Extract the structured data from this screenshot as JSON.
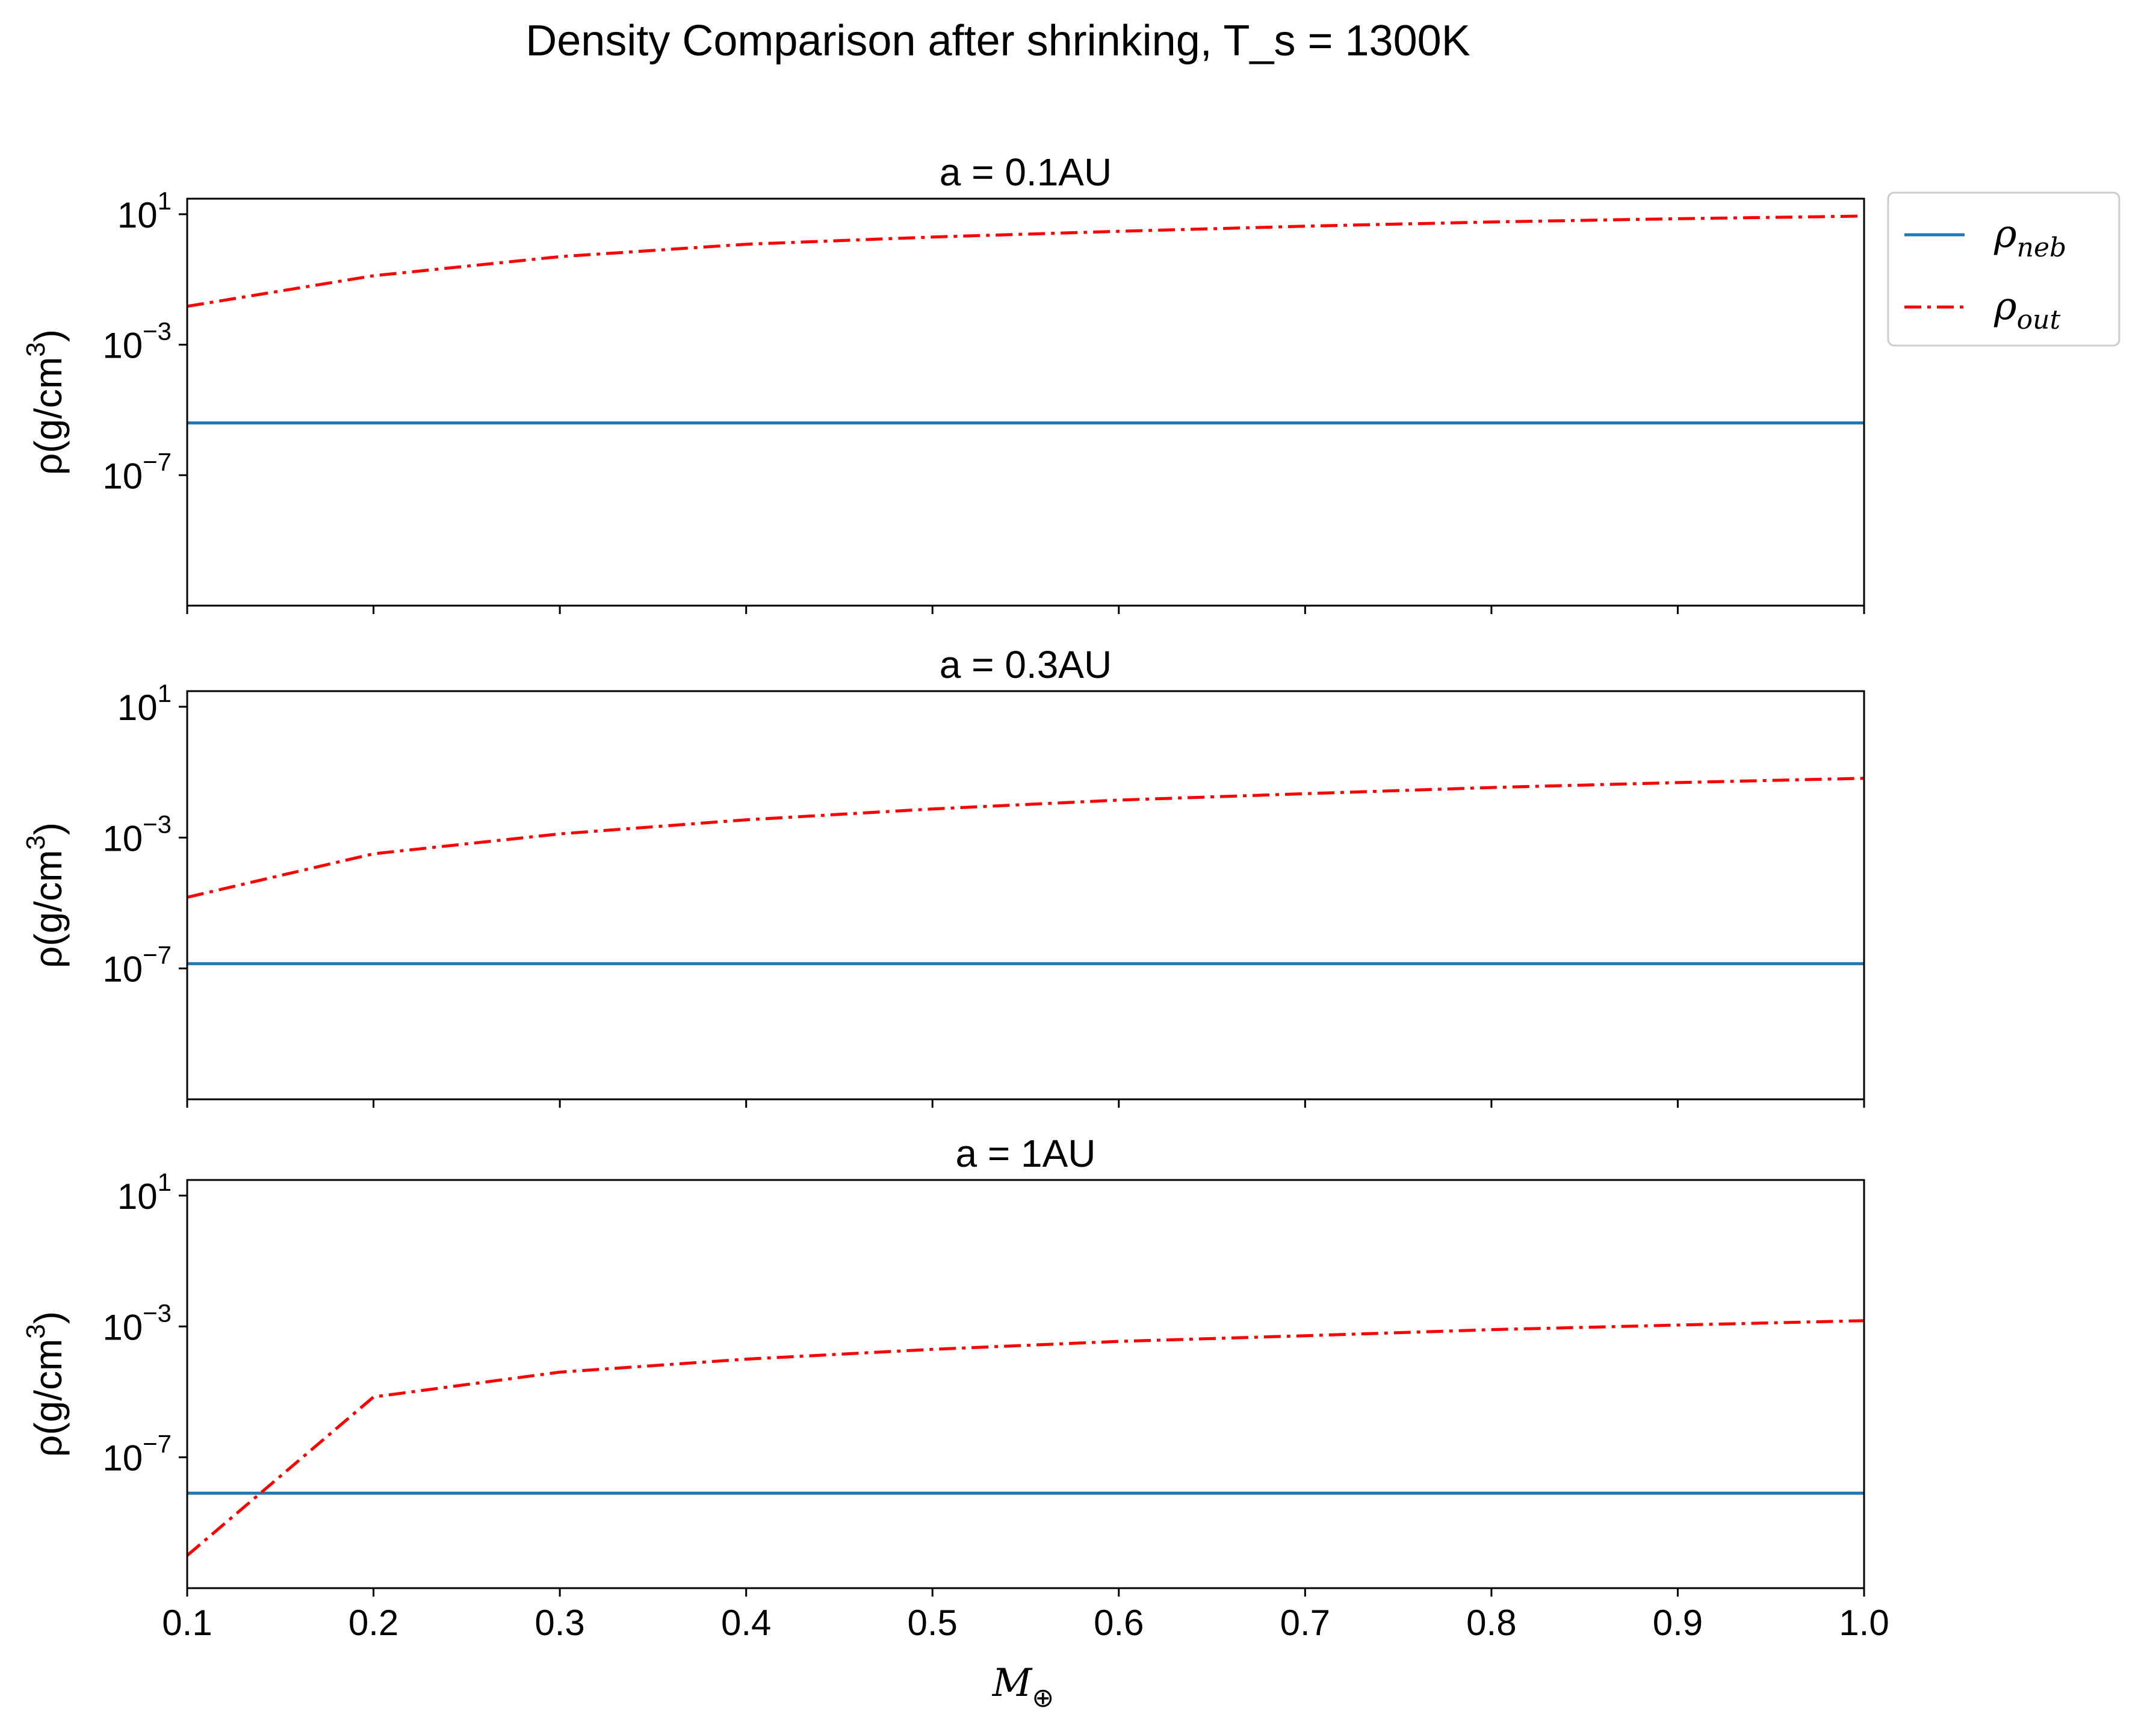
{
  "figure": {
    "title": "Density Comparison after shrinking, T_s = 1300K",
    "xlabel": "M",
    "xlabel_sub": "⊕",
    "ylabel_prefix": "ρ(g/cm",
    "ylabel_sup": "3",
    "ylabel_suffix": ")"
  },
  "legend": {
    "placement": "outside upper right",
    "entries": [
      {
        "symbol": "ρ",
        "sub": "neb",
        "color": "#1f77b4",
        "linestyle": "solid"
      },
      {
        "symbol": "ρ",
        "sub": "out",
        "color": "#ff0000",
        "linestyle": "dashdot"
      }
    ]
  },
  "chart_data": [
    {
      "type": "line",
      "title": "a = 0.1AU",
      "xlabel": "",
      "ylabel": "ρ(g/cm3)",
      "yscale": "log",
      "xlim": [
        0.1,
        1.0
      ],
      "ylim": [
        1e-11,
        30
      ],
      "x_ticks": [
        0.1,
        0.2,
        0.3,
        0.4,
        0.5,
        0.6,
        0.7,
        0.8,
        0.9,
        1.0
      ],
      "x_tick_labels_shown": false,
      "y_ticks": [
        {
          "base": "10",
          "exp": "−7",
          "value": 1e-07
        },
        {
          "base": "10",
          "exp": "−3",
          "value": 0.001
        },
        {
          "base": "10",
          "exp": "1",
          "value": 10
        }
      ],
      "grid": false,
      "x": [
        0.1,
        0.2,
        0.3,
        0.4,
        0.5,
        0.6,
        0.7,
        0.8,
        0.9,
        1.0
      ],
      "series": [
        {
          "name": "ρneb",
          "color": "#1f77b4",
          "style": "solid",
          "values": [
            4e-06,
            4e-06,
            4e-06,
            4e-06,
            4e-06,
            4e-06,
            4e-06,
            4e-06,
            4e-06,
            4e-06
          ]
        },
        {
          "name": "ρout",
          "color": "#ff0000",
          "style": "dashdot",
          "values": [
            0.015,
            0.13,
            0.5,
            1.2,
            2.0,
            3.0,
            4.3,
            5.8,
            7.3,
            8.8
          ]
        }
      ]
    },
    {
      "type": "line",
      "title": "a = 0.3AU",
      "xlabel": "",
      "ylabel": "ρ(g/cm3)",
      "yscale": "log",
      "xlim": [
        0.1,
        1.0
      ],
      "ylim": [
        1e-11,
        30
      ],
      "x_ticks": [
        0.1,
        0.2,
        0.3,
        0.4,
        0.5,
        0.6,
        0.7,
        0.8,
        0.9,
        1.0
      ],
      "x_tick_labels_shown": false,
      "y_ticks": [
        {
          "base": "10",
          "exp": "−7",
          "value": 1e-07
        },
        {
          "base": "10",
          "exp": "−3",
          "value": 0.001
        },
        {
          "base": "10",
          "exp": "1",
          "value": 10
        }
      ],
      "grid": false,
      "x": [
        0.1,
        0.2,
        0.3,
        0.4,
        0.5,
        0.6,
        0.7,
        0.8,
        0.9,
        1.0
      ],
      "series": [
        {
          "name": "ρneb",
          "color": "#1f77b4",
          "style": "solid",
          "values": [
            1.4e-07,
            1.4e-07,
            1.4e-07,
            1.4e-07,
            1.4e-07,
            1.4e-07,
            1.4e-07,
            1.4e-07,
            1.4e-07,
            1.4e-07
          ]
        },
        {
          "name": "ρout",
          "color": "#ff0000",
          "style": "dashdot",
          "values": [
            1.5e-05,
            0.00032,
            0.0013,
            0.0035,
            0.0075,
            0.014,
            0.022,
            0.034,
            0.048,
            0.065
          ]
        }
      ]
    },
    {
      "type": "line",
      "title": "a = 1AU",
      "xlabel": "M⊕",
      "ylabel": "ρ(g/cm3)",
      "yscale": "log",
      "xlim": [
        0.1,
        1.0
      ],
      "ylim": [
        1e-11,
        30
      ],
      "x_ticks": [
        0.1,
        0.2,
        0.3,
        0.4,
        0.5,
        0.6,
        0.7,
        0.8,
        0.9,
        1.0
      ],
      "x_tick_labels_shown": true,
      "y_ticks": [
        {
          "base": "10",
          "exp": "−7",
          "value": 1e-07
        },
        {
          "base": "10",
          "exp": "−3",
          "value": 0.001
        },
        {
          "base": "10",
          "exp": "1",
          "value": 10
        }
      ],
      "grid": false,
      "x": [
        0.1,
        0.2,
        0.3,
        0.4,
        0.5,
        0.6,
        0.7,
        0.8,
        0.9,
        1.0
      ],
      "series": [
        {
          "name": "ρneb",
          "color": "#1f77b4",
          "style": "solid",
          "values": [
            8e-09,
            8e-09,
            8e-09,
            8e-09,
            8e-09,
            8e-09,
            8e-09,
            8e-09,
            8e-09,
            8e-09
          ]
        },
        {
          "name": "ρout",
          "color": "#ff0000",
          "style": "dashdot",
          "values": [
            1e-10,
            7e-06,
            4e-05,
            0.0001,
            0.0002,
            0.00035,
            0.00052,
            0.0008,
            0.0011,
            0.0015
          ]
        }
      ]
    }
  ]
}
